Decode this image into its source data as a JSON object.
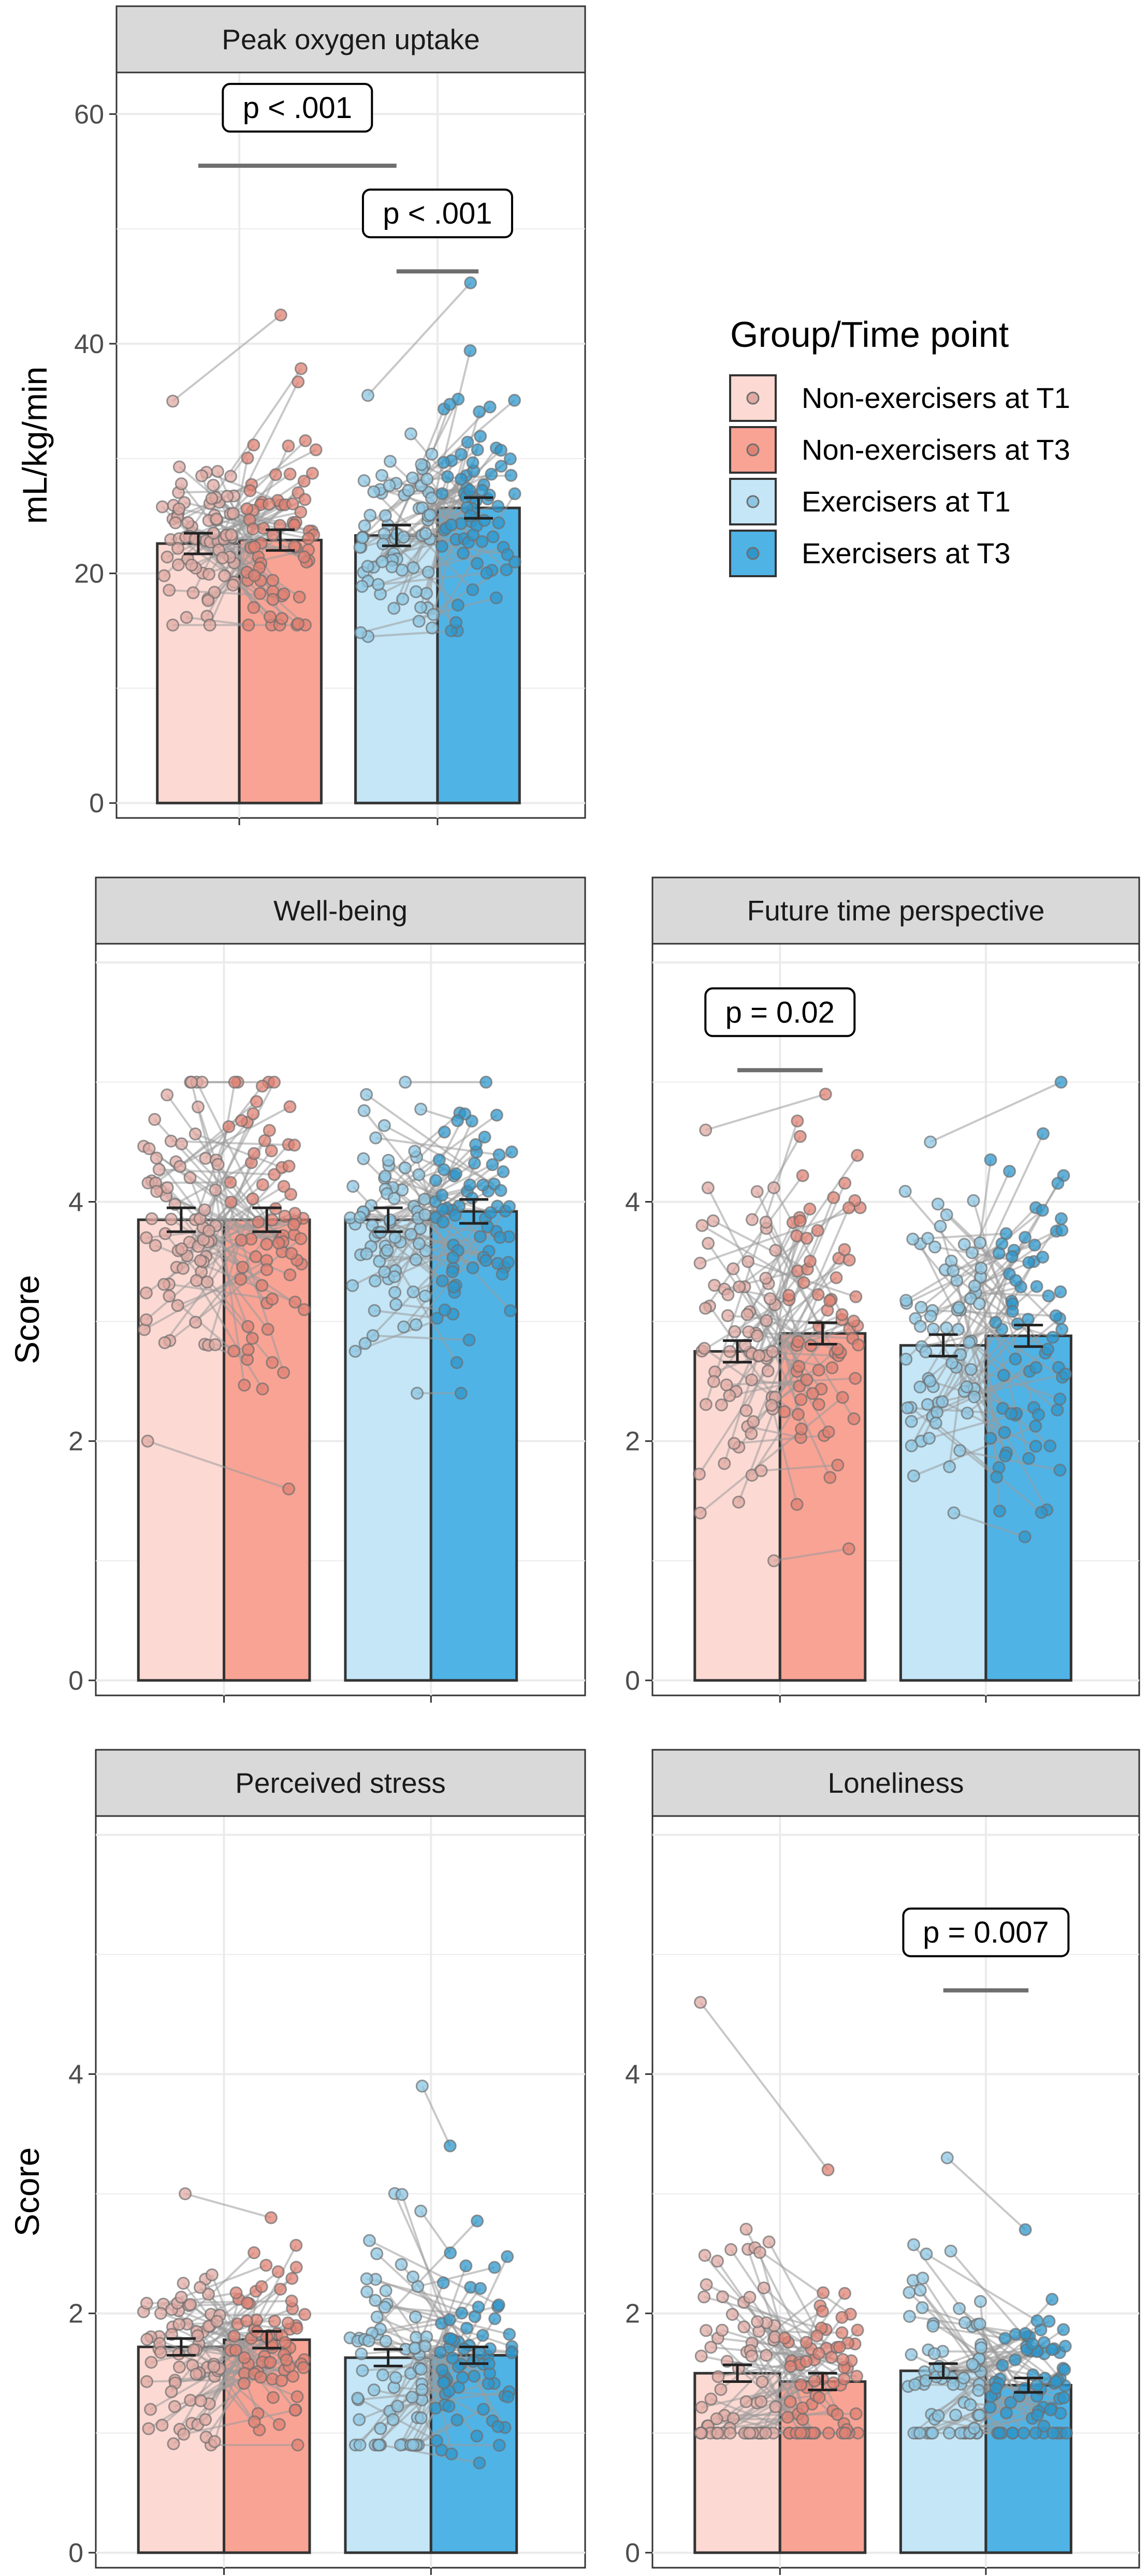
{
  "legend": {
    "title": "Group/Time point",
    "entries": [
      {
        "label": "Non-exercisers at T1",
        "fill": "#fcd9d3",
        "point": "#e0aaa3"
      },
      {
        "label": "Non-exercisers at T3",
        "fill": "#f9a394",
        "point": "#e08273"
      },
      {
        "label": "Exercisers at T1",
        "fill": "#c4e6f7",
        "point": "#8cc6e2"
      },
      {
        "label": "Exercisers at T3",
        "fill": "#4fb3e6",
        "point": "#2e97cc"
      }
    ]
  },
  "chart_data": [
    {
      "type": "bar",
      "title": "Peak oxygen uptake",
      "ylabel": "mL/kg/min",
      "ylim": [
        0,
        62
      ],
      "yticks": [
        "0",
        "20",
        "40",
        "60"
      ],
      "categories": [
        "Non-exercisers at T1",
        "Non-exercisers at T3",
        "Exercisers at T1",
        "Exercisers at T3"
      ],
      "values": [
        22.6,
        22.9,
        23.3,
        25.7
      ],
      "errors": [
        0.9,
        0.9,
        0.9,
        0.9
      ],
      "point_range": [
        [
          15.5,
          35
        ],
        [
          15.5,
          42.5
        ],
        [
          14.5,
          35.5
        ],
        [
          15,
          45.3
        ]
      ],
      "annotations": [
        {
          "label": "p < .001",
          "from": 0,
          "to": 2,
          "y": 55.5
        },
        {
          "label": "p < .001",
          "from": 2,
          "to": 3,
          "y": 46.3
        }
      ]
    },
    {
      "type": "bar",
      "title": "Well-being",
      "ylabel": "Score",
      "ylim": [
        0,
        6
      ],
      "yticks": [
        "0",
        "2",
        "4"
      ],
      "categories": [
        "Non-exercisers at T1",
        "Non-exercisers at T3",
        "Exercisers at T1",
        "Exercisers at T3"
      ],
      "values": [
        3.85,
        3.85,
        3.85,
        3.92
      ],
      "errors": [
        0.1,
        0.1,
        0.1,
        0.1
      ],
      "point_range": [
        [
          2.0,
          5.0
        ],
        [
          1.6,
          5.0
        ],
        [
          2.4,
          5.0
        ],
        [
          2.4,
          5.0
        ]
      ],
      "annotations": []
    },
    {
      "type": "bar",
      "title": "Future time perspective",
      "ylabel": "",
      "ylim": [
        0,
        6
      ],
      "yticks": [
        "0",
        "2",
        "4"
      ],
      "categories": [
        "Non-exercisers at T1",
        "Non-exercisers at T3",
        "Exercisers at T1",
        "Exercisers at T3"
      ],
      "values": [
        2.75,
        2.9,
        2.8,
        2.88
      ],
      "errors": [
        0.09,
        0.09,
        0.09,
        0.09
      ],
      "point_range": [
        [
          1.0,
          4.6
        ],
        [
          1.1,
          4.9
        ],
        [
          1.4,
          4.5
        ],
        [
          1.2,
          5.0
        ]
      ],
      "annotations": [
        {
          "label": "p = 0.02",
          "from": 0,
          "to": 1,
          "y": 5.1
        }
      ]
    },
    {
      "type": "bar",
      "title": "Perceived stress",
      "ylabel": "Score",
      "ylim": [
        0,
        6
      ],
      "yticks": [
        "0",
        "2",
        "4"
      ],
      "categories": [
        "Non-exercisers at T1",
        "Non-exercisers at T3",
        "Exercisers at T1",
        "Exercisers at T3"
      ],
      "values": [
        1.72,
        1.78,
        1.63,
        1.65
      ],
      "errors": [
        0.07,
        0.07,
        0.07,
        0.07
      ],
      "point_range": [
        [
          0.9,
          3.0
        ],
        [
          0.9,
          2.8
        ],
        [
          0.9,
          3.9
        ],
        [
          0.75,
          3.4
        ]
      ],
      "annotations": []
    },
    {
      "type": "bar",
      "title": "Loneliness",
      "ylabel": "",
      "ylim": [
        0,
        6
      ],
      "yticks": [
        "0",
        "2",
        "4"
      ],
      "categories": [
        "Non-exercisers at T1",
        "Non-exercisers at T3",
        "Exercisers at T1",
        "Exercisers at T3"
      ],
      "values": [
        1.5,
        1.43,
        1.52,
        1.4
      ],
      "errors": [
        0.07,
        0.07,
        0.06,
        0.06
      ],
      "point_range": [
        [
          1.0,
          4.6
        ],
        [
          1.0,
          3.2
        ],
        [
          1.0,
          3.3
        ],
        [
          1.0,
          2.7
        ]
      ],
      "annotations": [
        {
          "label": "p = 0.007",
          "from": 2,
          "to": 3,
          "y": 4.7
        }
      ]
    }
  ]
}
